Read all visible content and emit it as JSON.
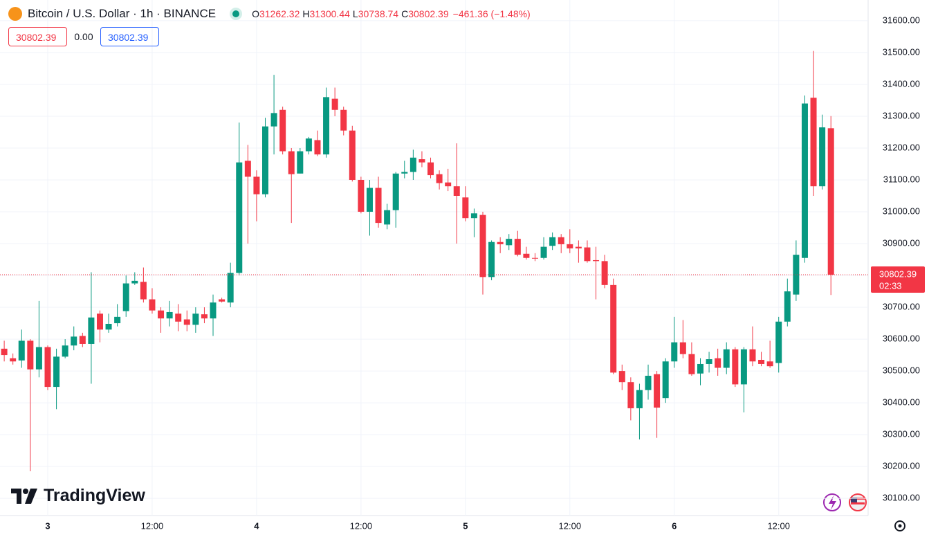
{
  "chart_data": {
    "type": "candlestick",
    "title": "Bitcoin / U.S. Dollar · 1h · BINANCE",
    "ohlc_labels": [
      "O",
      "H",
      "L",
      "C"
    ],
    "change": "−461.36 (−1.48%)",
    "bid": 30802.39,
    "spread": "0.00",
    "ask": 30802.39,
    "countdown": "02:33",
    "brand": "TradingView",
    "up_color": "#089981",
    "down_color": "#f23645",
    "categories": [
      null,
      null,
      null,
      null,
      null,
      "3",
      null,
      null,
      null,
      null,
      null,
      null,
      null,
      null,
      null,
      null,
      null,
      "12:00",
      null,
      null,
      null,
      null,
      null,
      null,
      null,
      null,
      null,
      null,
      null,
      "4",
      null,
      null,
      null,
      null,
      null,
      null,
      null,
      null,
      null,
      null,
      null,
      "12:00",
      null,
      null,
      null,
      null,
      null,
      null,
      null,
      null,
      null,
      null,
      null,
      "5",
      null,
      null,
      null,
      null,
      null,
      null,
      null,
      null,
      null,
      null,
      null,
      "12:00",
      null,
      null,
      null,
      null,
      null,
      null,
      null,
      null,
      null,
      null,
      null,
      "6",
      null,
      null,
      null,
      null,
      null,
      null,
      null,
      null,
      null,
      null,
      null,
      "12:00",
      null,
      null,
      null,
      null,
      null,
      null
    ],
    "open": [
      30570,
      30540,
      30533,
      30595,
      30505,
      30575,
      30450,
      30545,
      30580,
      30610,
      30585,
      30680,
      30630,
      30650,
      30688,
      30775,
      30780,
      30725,
      30690,
      30665,
      30680,
      30662,
      30645,
      30678,
      30665,
      30725,
      30715,
      30808,
      31160,
      31110,
      31055,
      31268,
      31320,
      31190,
      31120,
      31190,
      31225,
      31180,
      31355,
      31320,
      31255,
      31100,
      31000,
      31075,
      30960,
      31005,
      31120,
      31125,
      31165,
      31155,
      31118,
      31092,
      31080,
      31045,
      30980,
      30990,
      30795,
      30905,
      30895,
      30915,
      30868,
      30855,
      30855,
      30893,
      30920,
      30898,
      30890,
      30888,
      30848,
      30845,
      30770,
      30500,
      30465,
      30383,
      30440,
      30490,
      30415,
      30530,
      30590,
      30553,
      30492,
      30522,
      30540,
      30510,
      30568,
      30458,
      30568,
      30535,
      30530,
      30525,
      30655,
      30740,
      30855,
      31358,
      31080,
      31262.32
    ],
    "high": [
      30595,
      30555,
      30630,
      30600,
      30720,
      30580,
      30570,
      30600,
      30640,
      30620,
      30810,
      30690,
      30680,
      30710,
      30800,
      30810,
      30825,
      30760,
      30700,
      30720,
      30710,
      30690,
      30700,
      30700,
      30740,
      30730,
      30840,
      31280,
      31210,
      31130,
      31295,
      31430,
      31330,
      31200,
      31200,
      31235,
      31255,
      31390,
      31390,
      31330,
      31270,
      31110,
      31100,
      31110,
      31025,
      31125,
      31160,
      31195,
      31190,
      31170,
      31130,
      31135,
      31215,
      31080,
      31010,
      31000,
      30910,
      30920,
      30930,
      30940,
      30890,
      30870,
      30920,
      30935,
      30930,
      30945,
      30910,
      30910,
      30890,
      30865,
      30790,
      30520,
      30480,
      30460,
      30520,
      30500,
      30540,
      30670,
      30660,
      30590,
      30540,
      30560,
      30570,
      30590,
      30575,
      30575,
      30640,
      30560,
      30595,
      30670,
      30790,
      30910,
      31365,
      31505,
      31305,
      31300.44
    ],
    "low": [
      30530,
      30520,
      30510,
      30185,
      30480,
      30440,
      30380,
      30540,
      30565,
      30575,
      30460,
      30590,
      30620,
      30640,
      30670,
      30770,
      30715,
      30680,
      30620,
      30640,
      30625,
      30625,
      30620,
      30650,
      30610,
      30715,
      30700,
      30800,
      30900,
      30970,
      31045,
      31180,
      31180,
      30965,
      31120,
      31180,
      31175,
      31170,
      31300,
      31240,
      31095,
      30995,
      30925,
      30950,
      30945,
      30950,
      31105,
      31100,
      31140,
      31105,
      31070,
      31065,
      30900,
      30970,
      30920,
      30740,
      30785,
      30870,
      30880,
      30860,
      30850,
      30845,
      30850,
      30880,
      30870,
      30870,
      30840,
      30840,
      30725,
      30760,
      30490,
      30440,
      30345,
      30285,
      30410,
      30290,
      30400,
      30510,
      30540,
      30485,
      30455,
      30495,
      30485,
      30490,
      30450,
      30370,
      30515,
      30515,
      30510,
      30495,
      30640,
      30720,
      30840,
      31050,
      31070,
      30738.74
    ],
    "close": [
      30550,
      30530,
      30595,
      30505,
      30575,
      30450,
      30545,
      30580,
      30608,
      30585,
      30668,
      30630,
      30648,
      30670,
      30775,
      30783,
      30725,
      30690,
      30665,
      30685,
      30655,
      30645,
      30680,
      30665,
      30715,
      30718,
      30808,
      31155,
      31110,
      31055,
      31268,
      31310,
      31190,
      31118,
      31190,
      31230,
      31180,
      31360,
      31320,
      31255,
      31100,
      31000,
      31075,
      30965,
      31005,
      31120,
      31125,
      31170,
      31155,
      31115,
      31090,
      31080,
      31050,
      30980,
      30995,
      30795,
      30905,
      30898,
      30915,
      30865,
      30855,
      30853,
      30890,
      30920,
      30898,
      30885,
      30885,
      30845,
      30845,
      30770,
      30495,
      30465,
      30383,
      30440,
      30485,
      30385,
      30530,
      30590,
      30553,
      30490,
      30522,
      30537,
      30510,
      30568,
      30458,
      30568,
      30530,
      30522,
      30515,
      30655,
      30750,
      30865,
      31340,
      31080,
      31265,
      30802.39
    ],
    "ylim": [
      30046,
      31665
    ],
    "yticks": [
      {
        "value": 30100,
        "label": "30100.00"
      },
      {
        "value": 30200,
        "label": "30200.00"
      },
      {
        "value": 30300,
        "label": "30300.00"
      },
      {
        "value": 30400,
        "label": "30400.00"
      },
      {
        "value": 30500,
        "label": "30500.00"
      },
      {
        "value": 30600,
        "label": "30600.00"
      },
      {
        "value": 30700,
        "label": "30700.00"
      },
      {
        "value": 30800,
        "label": "30800.00"
      },
      {
        "value": 30900,
        "label": "30900.00"
      },
      {
        "value": 31000,
        "label": "31000.00"
      },
      {
        "value": 31100,
        "label": "31100.00"
      },
      {
        "value": 31200,
        "label": "31200.00"
      },
      {
        "value": 31300,
        "label": "31300.00"
      },
      {
        "value": 31400,
        "label": "31400.00"
      },
      {
        "value": 31500,
        "label": "31500.00"
      },
      {
        "value": 31600,
        "label": "31600.00"
      }
    ],
    "grid": true
  }
}
